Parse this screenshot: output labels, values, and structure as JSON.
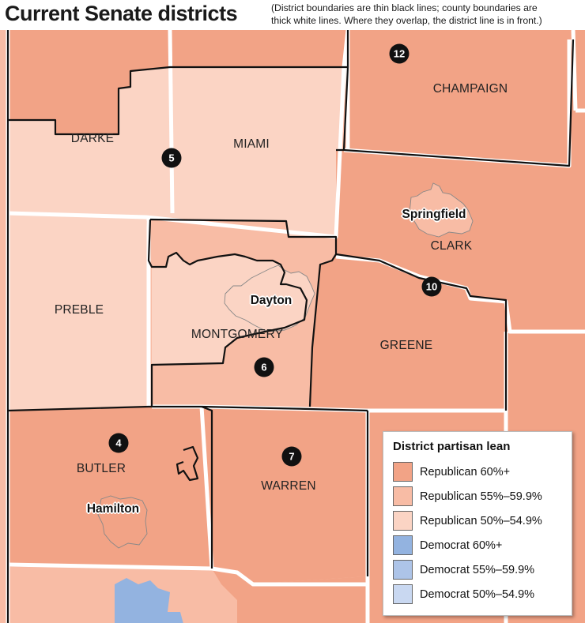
{
  "title": "Current Senate districts",
  "note": [
    "(District boundaries are thin black lines; county boundaries are",
    "thick white lines. Where they overlap, the district line is in front.)"
  ],
  "colors": {
    "rep60": "#f2a386",
    "rep55": "#f8bca5",
    "rep50": "#fbd4c4",
    "dem60": "#93b3e0",
    "dem55": "#adc4e8",
    "dem50": "#c9d8f1"
  },
  "counties": [
    {
      "name": "DARKE"
    },
    {
      "name": "MIAMI"
    },
    {
      "name": "CHAMPAIGN"
    },
    {
      "name": "CLARK"
    },
    {
      "name": "PREBLE"
    },
    {
      "name": "MONTGOMERY"
    },
    {
      "name": "GREENE"
    },
    {
      "name": "BUTLER"
    },
    {
      "name": "WARREN"
    }
  ],
  "cities": [
    {
      "name": "Springfield"
    },
    {
      "name": "Dayton"
    },
    {
      "name": "Hamilton"
    }
  ],
  "districts": [
    "12",
    "5",
    "10",
    "6",
    "4",
    "7"
  ],
  "legend": {
    "title": "District partisan lean",
    "items": [
      {
        "label": "Republican 60%+",
        "color": "#f2a386"
      },
      {
        "label": "Republican 55%–59.9%",
        "color": "#f8bca5"
      },
      {
        "label": "Republican  50%–54.9%",
        "color": "#fbd4c4"
      },
      {
        "label": "Democrat 60%+",
        "color": "#93b3e0"
      },
      {
        "label": "Democrat 55%–59.9%",
        "color": "#adc4e8"
      },
      {
        "label": "Democrat 50%–54.9%",
        "color": "#c9d8f1"
      }
    ]
  }
}
